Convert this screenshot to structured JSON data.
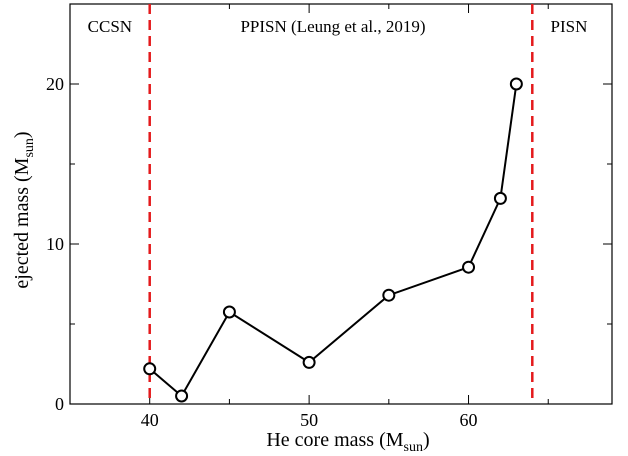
{
  "chart_data": {
    "type": "line",
    "xlabel": "He core mass (M",
    "xlabel_sub": "sun",
    "xlabel_close": ")",
    "ylabel": "ejected mass (M",
    "ylabel_sub": "sun",
    "ylabel_close": ")",
    "xlim": [
      35,
      69
    ],
    "ylim": [
      0,
      25
    ],
    "x_ticks": [
      40,
      50,
      60
    ],
    "y_ticks": [
      0,
      10,
      20
    ],
    "x_tick_labels": [
      "40",
      "50",
      "60"
    ],
    "y_tick_labels": [
      "0",
      "10",
      "20"
    ],
    "grid": false,
    "series": [
      {
        "x": [
          40,
          42,
          45,
          50,
          55,
          60,
          62,
          63
        ],
        "y": [
          2.2,
          0.5,
          5.75,
          2.6,
          6.8,
          8.55,
          12.85,
          20.0
        ],
        "line_color": "#000000",
        "marker": "open-circle"
      }
    ],
    "vertical_lines": [
      {
        "x": 40,
        "color": "#e41a1c",
        "style": "dashed"
      },
      {
        "x": 64,
        "color": "#e41a1c",
        "style": "dashed"
      }
    ],
    "region_labels": [
      {
        "text": "CCSN",
        "anchor_x": 37.5
      },
      {
        "text": "PPISN (Leung et al., 2019)",
        "anchor_x": 51.5
      },
      {
        "text": "PISN",
        "anchor_x": 66.3
      }
    ]
  }
}
